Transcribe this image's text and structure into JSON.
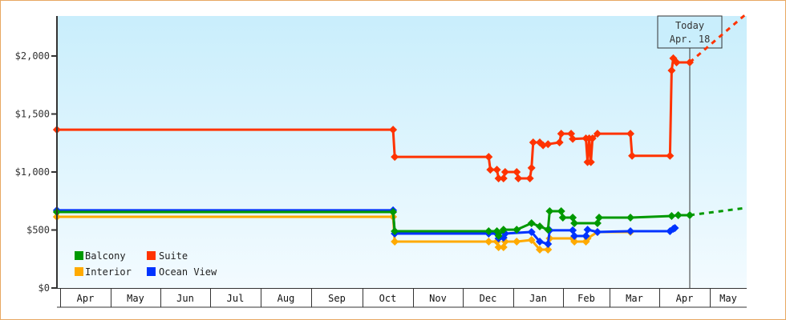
{
  "chart_data": {
    "type": "line",
    "title": "",
    "xlabel": "",
    "ylabel": "",
    "ylim": [
      0,
      2345
    ],
    "y_ticks": [
      "$0",
      "$500",
      "$1,000",
      "$1,500",
      "$2,000"
    ],
    "y_tick_values": [
      0,
      500,
      1000,
      1500,
      2000
    ],
    "x_ticks": [
      "Apr",
      "May",
      "Jun",
      "Jul",
      "Aug",
      "Sep",
      "Oct",
      "Nov",
      "Dec",
      "Jan",
      "Feb",
      "Mar",
      "Apr",
      "May"
    ],
    "grid": false,
    "legend_placement": "bottom-left",
    "today": {
      "line1": "Today",
      "line2": "Apr. 18",
      "date": "Apr 18"
    },
    "series": [
      {
        "name": "Balcony",
        "color": "#009900",
        "points": [
          [
            "Mar 30",
            655
          ],
          [
            "Oct 20",
            655
          ],
          [
            "Oct 21",
            490
          ],
          [
            "Dec 17",
            490
          ],
          [
            "Dec 22",
            490
          ],
          [
            "Dec 23",
            450
          ],
          [
            "Dec 26",
            503
          ],
          [
            "Jan 3",
            503
          ],
          [
            "Jan 12",
            559
          ],
          [
            "Jan 17",
            531
          ],
          [
            "Jan 22",
            503
          ],
          [
            "Jan 23",
            662
          ],
          [
            "Jan 30",
            662
          ],
          [
            "Jan 31",
            607
          ],
          [
            "Feb 6",
            607
          ],
          [
            "Feb 7",
            559
          ],
          [
            "Feb 21",
            559
          ],
          [
            "Feb 22",
            607
          ],
          [
            "Mar 13",
            607
          ],
          [
            "Apr 7",
            621
          ],
          [
            "Apr 11",
            628
          ],
          [
            "Apr 18",
            628
          ]
        ],
        "forecast": [
          [
            "Apr 18",
            628
          ],
          [
            "May 22",
            690
          ]
        ]
      },
      {
        "name": "Suite",
        "color": "#ff3300",
        "points": [
          [
            "Mar 30",
            1365
          ],
          [
            "Oct 20",
            1365
          ],
          [
            "Oct 21",
            1130
          ],
          [
            "Dec 17",
            1130
          ],
          [
            "Dec 18",
            1020
          ],
          [
            "Dec 22",
            1020
          ],
          [
            "Dec 23",
            945
          ],
          [
            "Dec 26",
            945
          ],
          [
            "Dec 27",
            1000
          ],
          [
            "Jan 3",
            1000
          ],
          [
            "Jan 4",
            945
          ],
          [
            "Jan 11",
            945
          ],
          [
            "Jan 12",
            1035
          ],
          [
            "Jan 13",
            1255
          ],
          [
            "Jan 17",
            1255
          ],
          [
            "Jan 19",
            1230
          ],
          [
            "Jan 22",
            1240
          ],
          [
            "Jan 29",
            1255
          ],
          [
            "Jan 30",
            1330
          ],
          [
            "Feb 5",
            1330
          ],
          [
            "Feb 6",
            1285
          ],
          [
            "Feb 14",
            1290
          ],
          [
            "Feb 15",
            1085
          ],
          [
            "Feb 16",
            1290
          ],
          [
            "Feb 17",
            1085
          ],
          [
            "Feb 18",
            1290
          ],
          [
            "Feb 21",
            1330
          ],
          [
            "Mar 13",
            1330
          ],
          [
            "Mar 14",
            1140
          ],
          [
            "Apr 6",
            1140
          ],
          [
            "Apr 7",
            1875
          ],
          [
            "Apr 8",
            1980
          ],
          [
            "Apr 10",
            1945
          ],
          [
            "Apr 18",
            1945
          ]
        ],
        "forecast": [
          [
            "Apr 18",
            1945
          ],
          [
            "May 22",
            2360
          ]
        ]
      },
      {
        "name": "Interior",
        "color": "#ffaa00",
        "points": [
          [
            "Mar 30",
            614
          ],
          [
            "Oct 20",
            614
          ],
          [
            "Oct 21",
            400
          ],
          [
            "Dec 17",
            400
          ],
          [
            "Dec 22",
            400
          ],
          [
            "Dec 23",
            352
          ],
          [
            "Dec 26",
            352
          ],
          [
            "Dec 27",
            400
          ],
          [
            "Jan 3",
            400
          ],
          [
            "Jan 12",
            414
          ],
          [
            "Jan 17",
            331
          ],
          [
            "Jan 22",
            331
          ],
          [
            "Jan 23",
            428
          ],
          [
            "Feb 6",
            428
          ],
          [
            "Feb 7",
            400
          ],
          [
            "Feb 14",
            400
          ],
          [
            "Feb 15",
            428
          ],
          [
            "Feb 21",
            483
          ],
          [
            "Mar 13",
            483
          ]
        ]
      },
      {
        "name": "Ocean View",
        "color": "#0033ff",
        "points": [
          [
            "Mar 30",
            670
          ],
          [
            "Oct 20",
            670
          ],
          [
            "Oct 21",
            469
          ],
          [
            "Dec 17",
            469
          ],
          [
            "Dec 22",
            469
          ],
          [
            "Dec 23",
            428
          ],
          [
            "Dec 26",
            434
          ],
          [
            "Dec 27",
            469
          ],
          [
            "Jan 12",
            483
          ],
          [
            "Jan 17",
            400
          ],
          [
            "Jan 22",
            379
          ],
          [
            "Jan 23",
            497
          ],
          [
            "Feb 6",
            497
          ],
          [
            "Feb 7",
            448
          ],
          [
            "Feb 14",
            448
          ],
          [
            "Feb 15",
            503
          ],
          [
            "Feb 21",
            483
          ],
          [
            "Mar 13",
            490
          ],
          [
            "Apr 6",
            490
          ],
          [
            "Apr 8",
            510
          ],
          [
            "Apr 9",
            517
          ]
        ]
      }
    ]
  }
}
